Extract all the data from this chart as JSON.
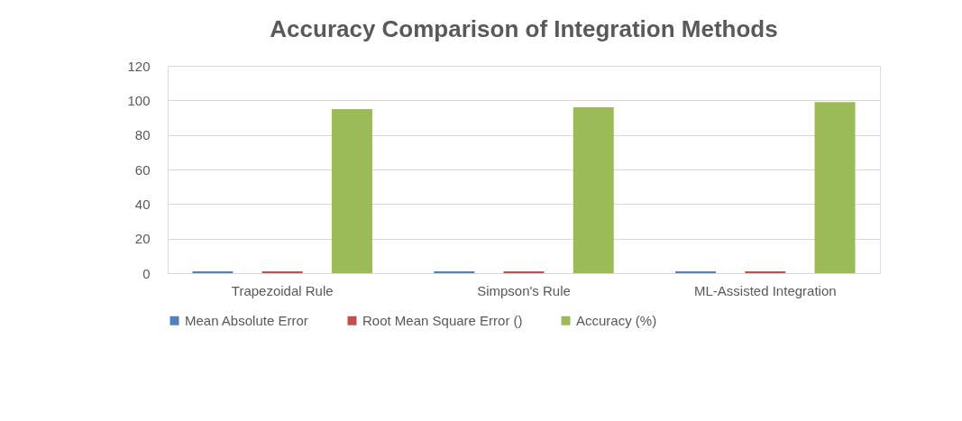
{
  "chart_data": {
    "type": "bar",
    "title": "Accuracy Comparison of Integration Methods",
    "categories": [
      "Trapezoidal Rule",
      "Simpson's Rule",
      "ML-Assisted Integration"
    ],
    "series": [
      {
        "name": "Mean Absolute Error",
        "color": "#4f81bd",
        "values": [
          1,
          1,
          1
        ]
      },
      {
        "name": "Root Mean Square Error ()",
        "color": "#c0504d",
        "values": [
          1,
          1,
          1
        ]
      },
      {
        "name": "Accuracy (%)",
        "color": "#9bbb59",
        "values": [
          95,
          96,
          99
        ]
      }
    ],
    "ylim": [
      0,
      120
    ],
    "yticks": [
      0,
      20,
      40,
      60,
      80,
      100,
      120
    ],
    "grid": "y",
    "legend": "bottom"
  }
}
